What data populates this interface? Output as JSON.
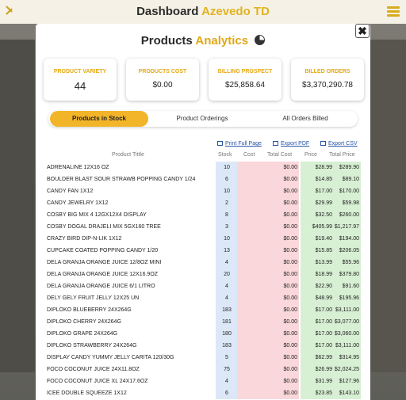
{
  "app": {
    "title_prefix": "Dashboard",
    "title_brand": "Azevedo TD"
  },
  "modal": {
    "title_main": "Products",
    "title_accent": "Analytics",
    "close_label": "✖"
  },
  "cards": [
    {
      "label": "PRODUCT VARIETY",
      "value": "44"
    },
    {
      "label": "PRODUCTS COST",
      "value": "$0.00"
    },
    {
      "label": "BILLING PROSPECT",
      "value": "$25,858.64"
    },
    {
      "label": "BILLED ORDERS",
      "value": "$3,370,290.78"
    }
  ],
  "tabs": [
    {
      "label": "Products in Stock",
      "active": true
    },
    {
      "label": "Product Orderings",
      "active": false
    },
    {
      "label": "All Orders Billed",
      "active": false
    }
  ],
  "actions": {
    "print": "Print Full Page",
    "pdf": "Export PDF",
    "csv": "Export CSV"
  },
  "table": {
    "headers": {
      "title": "Product Tittle",
      "stock": "Stock",
      "cost": "Cost",
      "total_cost": "Total Cost",
      "price": "Price",
      "total_price": "Total Price"
    },
    "rows": [
      {
        "title": "ADRENALINE 12X16 OZ",
        "stock": "10",
        "cost": "",
        "total_cost": "$0.00",
        "price": "$28.99",
        "total_price": "$289.90"
      },
      {
        "title": "BOULDER BLAST SOUR STRAWB POPPING CANDY 1/24",
        "stock": "6",
        "cost": "",
        "total_cost": "$0.00",
        "price": "$14.85",
        "total_price": "$89.10"
      },
      {
        "title": "CANDY FAN 1X12",
        "stock": "10",
        "cost": "",
        "total_cost": "$0.00",
        "price": "$17.00",
        "total_price": "$170.00"
      },
      {
        "title": "CANDY JEWELRY 1X12",
        "stock": "2",
        "cost": "",
        "total_cost": "$0.00",
        "price": "$29.99",
        "total_price": "$59.98"
      },
      {
        "title": "COSBY BIG MIX 4 12GX12X4 DISPLAY",
        "stock": "8",
        "cost": "",
        "total_cost": "$0.00",
        "price": "$32.50",
        "total_price": "$260.00"
      },
      {
        "title": "COSBY DOGAL DRAJELI MIX 5GX160 TREE",
        "stock": "3",
        "cost": "",
        "total_cost": "$0.00",
        "price": "$405.99",
        "total_price": "$1,217.97"
      },
      {
        "title": "CRAZY BIRD DIP-N-LIK 1X12",
        "stock": "10",
        "cost": "",
        "total_cost": "$0.00",
        "price": "$19.40",
        "total_price": "$194.00"
      },
      {
        "title": "CUPCAKE COATED POPPING CANDY 1/20",
        "stock": "13",
        "cost": "",
        "total_cost": "$0.00",
        "price": "$15.85",
        "total_price": "$206.05"
      },
      {
        "title": "DELA  GRANJA ORANGE JUICE 12/8OZ MINI",
        "stock": "4",
        "cost": "",
        "total_cost": "$0.00",
        "price": "$13.99",
        "total_price": "$55.96"
      },
      {
        "title": "DELA GRANJA ORANGE JUICE 12X16.9OZ",
        "stock": "20",
        "cost": "",
        "total_cost": "$0.00",
        "price": "$18.99",
        "total_price": "$379.80"
      },
      {
        "title": "DELA GRANJA ORANGE JUICE 6/1 LITRO",
        "stock": "4",
        "cost": "",
        "total_cost": "$0.00",
        "price": "$22.90",
        "total_price": "$91.60"
      },
      {
        "title": "DELY GELY FRUIT JELLY 12X25 UN",
        "stock": "4",
        "cost": "",
        "total_cost": "$0.00",
        "price": "$48.99",
        "total_price": "$195.96"
      },
      {
        "title": "DIPLOKO BLUEBERRY 24X264G",
        "stock": "183",
        "cost": "",
        "total_cost": "$0.00",
        "price": "$17.00",
        "total_price": "$3,111.00"
      },
      {
        "title": "DIPLOKO CHERRY 24X264G",
        "stock": "181",
        "cost": "",
        "total_cost": "$0.00",
        "price": "$17.00",
        "total_price": "$3,077.00"
      },
      {
        "title": "DIPLOKO GRAPE 24X264G",
        "stock": "180",
        "cost": "",
        "total_cost": "$0.00",
        "price": "$17.00",
        "total_price": "$3,060.00"
      },
      {
        "title": "DIPLOKO STRAWBERRY 24X264G",
        "stock": "183",
        "cost": "",
        "total_cost": "$0.00",
        "price": "$17.00",
        "total_price": "$3,111.00"
      },
      {
        "title": "DISPLAY CANDY YUMMY JELLY CARITA 120/30G",
        "stock": "5",
        "cost": "",
        "total_cost": "$0.00",
        "price": "$62.99",
        "total_price": "$314.95"
      },
      {
        "title": "FOCO COCONUT JUICE 24X11.8OZ",
        "stock": "75",
        "cost": "",
        "total_cost": "$0.00",
        "price": "$26.99",
        "total_price": "$2,024.25"
      },
      {
        "title": "FOCO COCONUT JUICE XL 24X17.6OZ",
        "stock": "4",
        "cost": "",
        "total_cost": "$0.00",
        "price": "$31.99",
        "total_price": "$127.96"
      },
      {
        "title": "ICEE DOUBLE SQUEEZE 1X12",
        "stock": "6",
        "cost": "",
        "total_cost": "$0.00",
        "price": "$23.85",
        "total_price": "$143.10"
      }
    ]
  }
}
